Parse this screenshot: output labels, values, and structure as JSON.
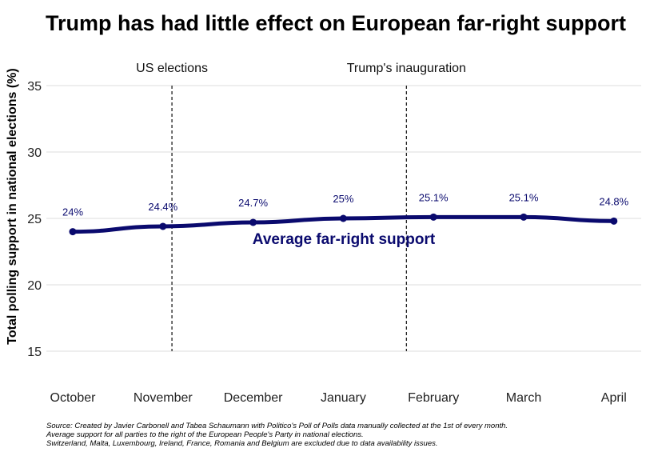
{
  "chart_data": {
    "type": "line",
    "title": "Trump has had little effect on European far-right support",
    "xlabel": "",
    "ylabel": "Total polling support in national elections (%)",
    "categories": [
      "October",
      "November",
      "December",
      "January",
      "February",
      "March",
      "April"
    ],
    "series": [
      {
        "name": "Average far-right support",
        "values": [
          24.0,
          24.4,
          24.7,
          25.0,
          25.1,
          25.1,
          24.8
        ],
        "labels": [
          "24%",
          "24.4%",
          "24.7%",
          "25%",
          "25.1%",
          "25.1%",
          "24.8%"
        ],
        "color": "#0a0a6e"
      }
    ],
    "yticks": [
      15,
      20,
      25,
      30,
      35
    ],
    "ylim": [
      15,
      35
    ],
    "grid": true,
    "annotations": [
      {
        "label": "US elections",
        "position": "between October and November, just before November"
      },
      {
        "label": "Trump's inauguration",
        "position": "between January and February"
      }
    ],
    "source": [
      "Source: Created by Javier Carbonell and Tabea Schaumann with Politico's Poll of Polls data manually collected at the 1st of every month.",
      "Average support for all parties to the right of the European People's Party in national elections.",
      "Switzerland, Malta, Luxembourg, Ireland, France, Romania and Belgium are excluded due to data availability issues."
    ]
  },
  "colors": {
    "line": "#0a0a6e",
    "grid": "#dddddd",
    "vline": "#222222"
  }
}
